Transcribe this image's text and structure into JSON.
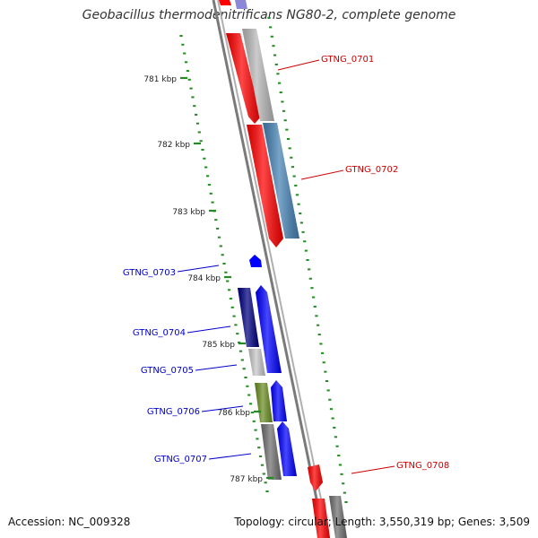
{
  "title": "Geobacillus thermodenitrificans NG80-2, complete genome",
  "footer": {
    "accession": "Accession: NC_009328",
    "summary": "Topology: circular; Length: 3,550,319 bp; Genes: 3,509"
  },
  "ticks": [
    {
      "label": "781 kbp"
    },
    {
      "label": "782 kbp"
    },
    {
      "label": "783 kbp"
    },
    {
      "label": "784 kbp"
    },
    {
      "label": "785 kbp"
    },
    {
      "label": "786 kbp"
    },
    {
      "label": "787 kbp"
    }
  ],
  "genes": [
    {
      "label": "GTNG_0701",
      "side": "right",
      "color": "#cc0000"
    },
    {
      "label": "GTNG_0702",
      "side": "right",
      "color": "#cc0000"
    },
    {
      "label": "GTNG_0703",
      "side": "left",
      "color": "#0000cc"
    },
    {
      "label": "GTNG_0704",
      "side": "left",
      "color": "#0000cc"
    },
    {
      "label": "GTNG_0705",
      "side": "left",
      "color": "#0000cc"
    },
    {
      "label": "GTNG_0706",
      "side": "left",
      "color": "#0000cc"
    },
    {
      "label": "GTNG_0707",
      "side": "left",
      "color": "#0000cc"
    },
    {
      "label": "GTNG_0708",
      "side": "right",
      "color": "#cc0000"
    }
  ],
  "colors": {
    "forward": "#ff0000",
    "reverse": "#0000ff",
    "navy": "#000080",
    "steel_blue": "#4682b4",
    "olive": "#6b8e23",
    "gray": "#b8b8b8",
    "dark_gray": "#707070",
    "lavender": "#8b88d8",
    "tick": "#228b22",
    "backbone": "#888888"
  }
}
